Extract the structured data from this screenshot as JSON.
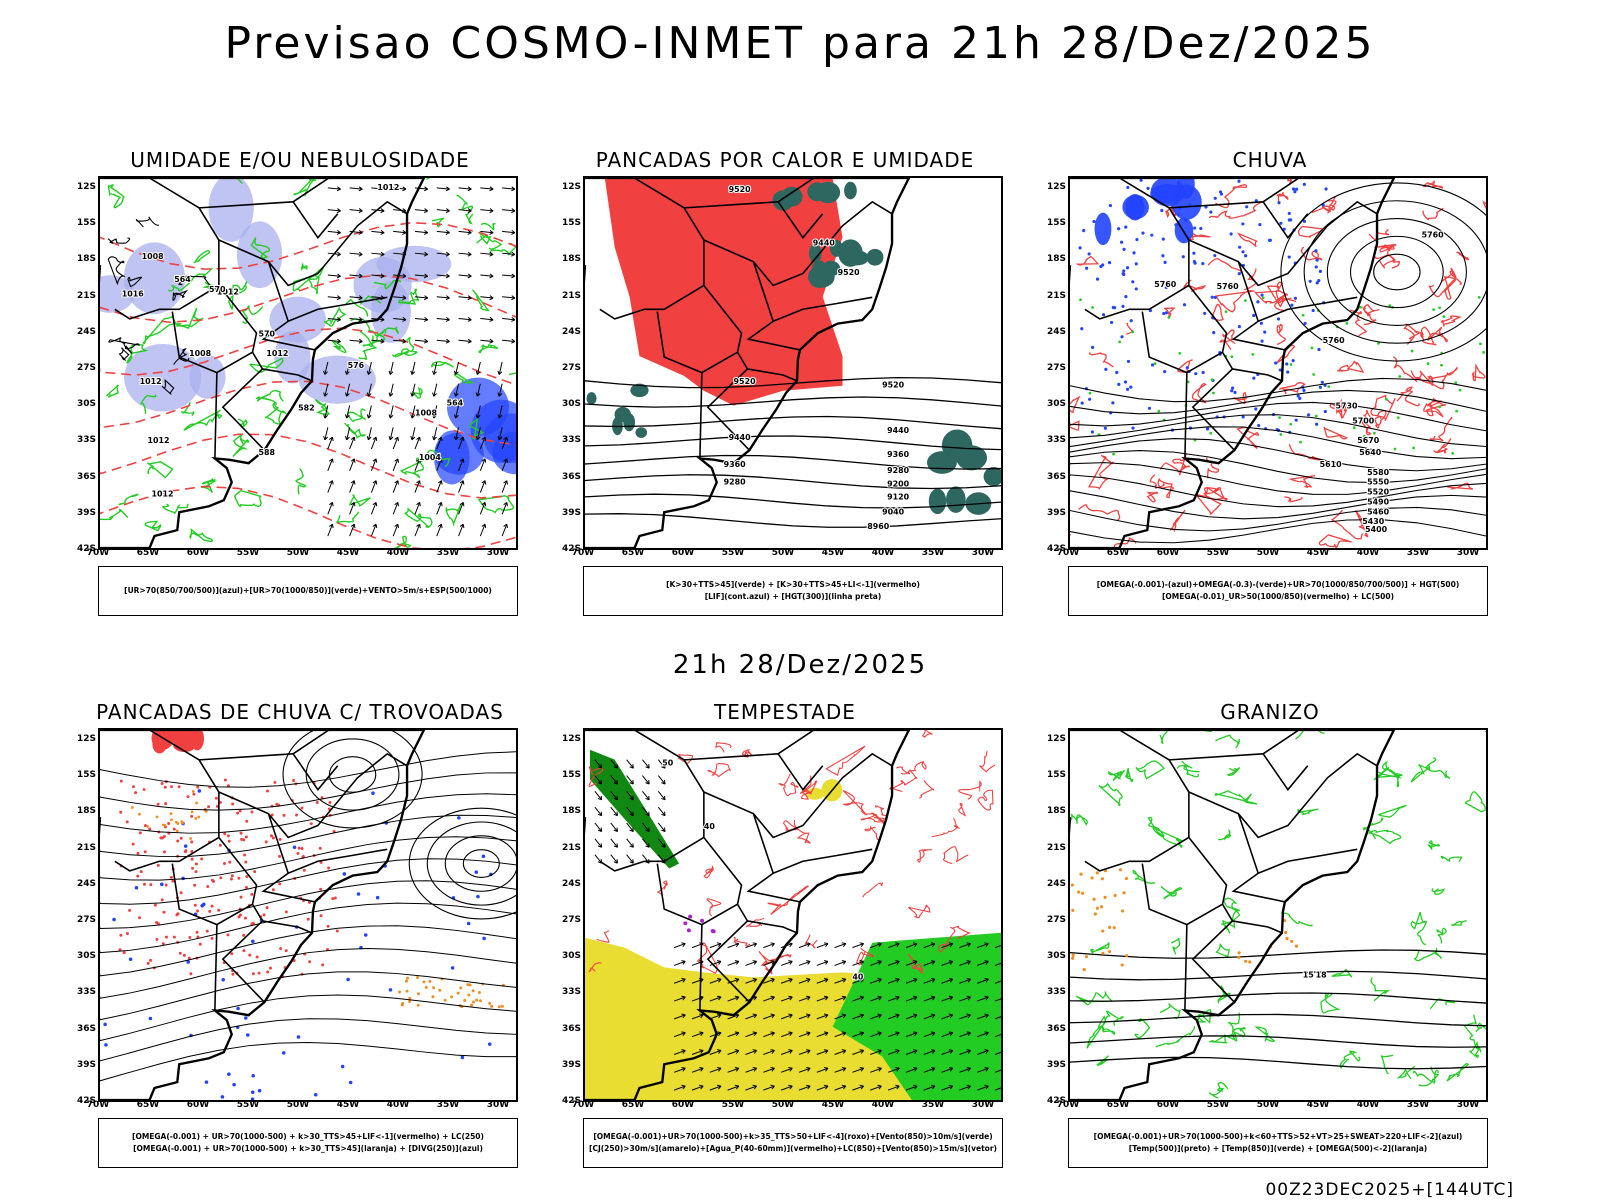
{
  "header": {
    "title": "Previsao COSMO-INMET  para 21h 28/Dez/2025",
    "mid_title": "21h 28/Dez/2025",
    "footer": "00Z23DEC2025+[144UTC]"
  },
  "axes": {
    "lat_labels": [
      "12S",
      "15S",
      "18S",
      "21S",
      "24S",
      "27S",
      "30S",
      "33S",
      "36S",
      "39S",
      "42S"
    ],
    "lon_labels": [
      "70W",
      "65W",
      "60W",
      "55W",
      "50W",
      "45W",
      "40W",
      "35W",
      "30W"
    ]
  },
  "colors": {
    "red": "#f04040",
    "green": "#22cc22",
    "blue": "#2244ff",
    "lavender": "#aab0ee",
    "teal": "#2e6660",
    "yellow": "#e8dd30",
    "orange": "#f08c20",
    "purple": "#aa22cc",
    "dark_green": "#118811"
  },
  "panels": [
    {
      "title": "UMIDADE E/OU NEBULOSIDADE",
      "legend": [
        "[UR>70(850/700/500)](azul)+[UR>70(1000/850)](verde)+VENTO>5m/s+ESP(500/1000)"
      ],
      "map_labels": [
        "1012",
        "1008",
        "1016",
        "1012",
        "1012",
        "1008",
        "1012",
        "1004",
        "1012",
        "564",
        "570",
        "570",
        "576",
        "582",
        "588",
        "564",
        "1008",
        "1012"
      ]
    },
    {
      "title": "PANCADAS POR CALOR E UMIDADE",
      "legend": [
        "[K>30+TTS>45](verde) + [K>30+TTS>45+LI<-1](vermelho)",
        "[LIF](cont.azul) + [HGT(300)](linha preta)"
      ],
      "map_labels": [
        "9520",
        "9440",
        "9520",
        "9520",
        "9520",
        "9440",
        "9440",
        "9360",
        "9360",
        "9280",
        "9280",
        "9200",
        "9120",
        "9040",
        "8960"
      ]
    },
    {
      "title": "CHUVA",
      "legend": [
        "[OMEGA(-0.001)-(azul)+OMEGA(-0.3)-(verde)+UR>70(1000/850/700/500)] + HGT(500)",
        "[OMEGA(-0.01)_UR>50(1000/850)(vermelho) + LC(500)"
      ],
      "map_labels": [
        "5760",
        "5760",
        "5760",
        "5760",
        "5730",
        "5700",
        "5670",
        "5640",
        "5610",
        "5580",
        "5550",
        "5520",
        "5490",
        "5460",
        "5430",
        "5400"
      ]
    },
    {
      "title": "PANCADAS DE CHUVA C/ TROVOADAS",
      "legend": [
        "[OMEGA(-0.001) + UR>70(1000-500) + k>30_TTS>45+LIF<-1](vermelho) + LC(250)",
        "[OMEGA(-0.001) + UR>70(1000-500) + k>30_TTS>45](laranja) + [DIVG(250)](azul)"
      ],
      "map_labels": []
    },
    {
      "title": "TEMPESTADE",
      "legend": [
        "[OMEGA(-0.001)+UR>70(1000-500)+k>35_TTS>50+LIF<-4](roxo)+[Vento(850)>10m/s](verde)",
        "[CJ(250)>30m/s](amarelo)+[Agua_P(40-60mm)](vermelho)+LC(850)+[Vento(850)>15m/s](vetor)"
      ],
      "map_labels": [
        "50",
        "40",
        "40"
      ]
    },
    {
      "title": "GRANIZO",
      "legend": [
        "[OMEGA(-0.001)+UR>70(1000-500)+k<60+TTS>52+VT>25+SWEAT>220+LIF<-2](azul)",
        "[Temp(500)](preto) + [Temp(850)](verde) + [OMEGA(500)<-2](laranja)"
      ],
      "map_labels": [
        "15",
        "18"
      ]
    }
  ]
}
